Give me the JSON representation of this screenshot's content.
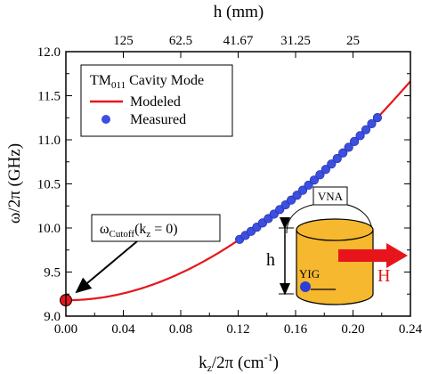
{
  "chart_data": {
    "type": "scatter",
    "x_axis": {
      "label_main": "k",
      "label_sub": "z",
      "label_rest": "/2π (cm",
      "label_sup": "-1",
      "label_close": ")",
      "range": [
        0.0,
        0.24
      ],
      "ticks": [
        0.0,
        0.04,
        0.08,
        0.12,
        0.16,
        0.2,
        0.24
      ],
      "tick_labels": [
        "0.00",
        "0.04",
        "0.08",
        "0.12",
        "0.16",
        "0.20",
        "0.24"
      ]
    },
    "y_axis": {
      "label": "ω/2π (GHz)",
      "range": [
        9.0,
        12.0
      ],
      "ticks": [
        9.0,
        9.5,
        10.0,
        10.5,
        11.0,
        11.5,
        12.0
      ],
      "tick_labels": [
        "9.0",
        "9.5",
        "10.0",
        "10.5",
        "11.0",
        "11.5",
        "12.0"
      ]
    },
    "top_axis": {
      "label": "h (mm)",
      "tick_positions_kz": [
        0.04,
        0.08,
        0.12,
        0.16,
        0.2
      ],
      "tick_labels": [
        "125",
        "62.5",
        "41.67",
        "31.25",
        "25"
      ]
    },
    "legend": {
      "title_main": "TM",
      "title_sub": "011",
      "title_rest": " Cavity Mode",
      "placement": "top-left",
      "entries": [
        "Modeled",
        "Measured"
      ]
    },
    "series": [
      {
        "name": "Modeled",
        "style": "line",
        "color": "#e8141b",
        "model": {
          "f0_ghz": 9.18,
          "c_cm_per_ns": 29.979,
          "x_range": [
            0.0,
            0.24
          ]
        }
      },
      {
        "name": "Measured",
        "style": "markers",
        "color": "#3d4fe0",
        "x": [
          0.121,
          0.125,
          0.129,
          0.133,
          0.137,
          0.141,
          0.145,
          0.149,
          0.153,
          0.157,
          0.161,
          0.165,
          0.169,
          0.173,
          0.177,
          0.181,
          0.185,
          0.189,
          0.193,
          0.197,
          0.201,
          0.205,
          0.209,
          0.213,
          0.217
        ]
      },
      {
        "name": "cutoff",
        "style": "marker",
        "color": "#e8141b",
        "x": [
          0.0
        ],
        "y": [
          9.18
        ]
      }
    ],
    "annotations": {
      "cutoff_label_main": "ω",
      "cutoff_label_sub": "Cutoff",
      "cutoff_label_mid": "(k",
      "cutoff_label_sub2": "z",
      "cutoff_label_end": " = 0)"
    },
    "inset": {
      "vna_label": "VNA",
      "height_label": "h",
      "yig_label": "YIG",
      "field_label": "H",
      "cylinder_color": "#f5b82e",
      "arrow_color": "#e8141b",
      "yig_color": "#2b3fd6"
    }
  }
}
